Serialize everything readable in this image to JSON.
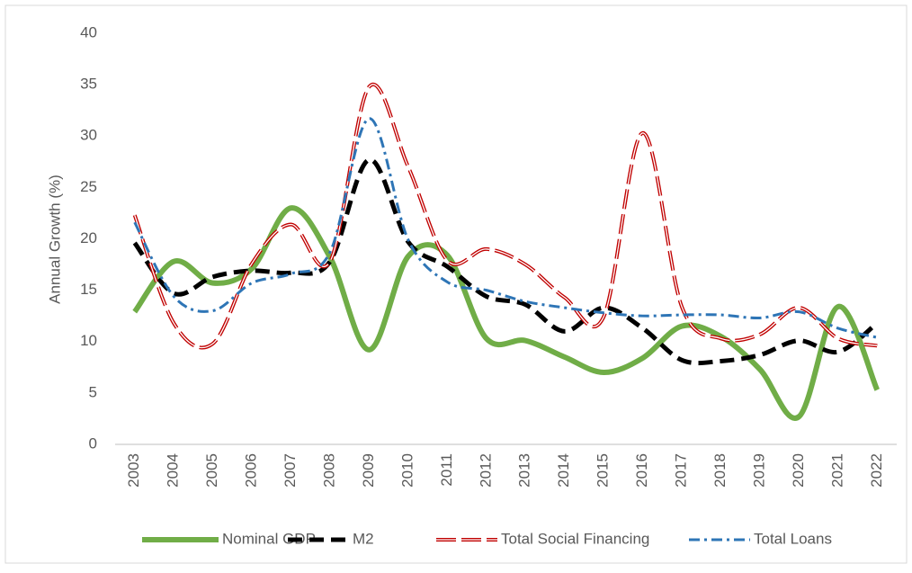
{
  "chart_data": {
    "type": "line",
    "y_label": "Annual Growth (%)",
    "categories": [
      "2003",
      "2004",
      "2005",
      "2006",
      "2007",
      "2008",
      "2009",
      "2010",
      "2011",
      "2012",
      "2013",
      "2014",
      "2015",
      "2016",
      "2017",
      "2018",
      "2019",
      "2020",
      "2021",
      "2022"
    ],
    "series": [
      {
        "name": "Nominal GDP",
        "color": "#70ad47",
        "style": "solid",
        "values": [
          12.9,
          17.8,
          15.7,
          17.1,
          23.0,
          18.2,
          9.2,
          18.3,
          18.4,
          10.3,
          10.1,
          8.5,
          7.0,
          8.4,
          11.5,
          10.5,
          7.3,
          2.7,
          13.4,
          5.3
        ]
      },
      {
        "name": "M2",
        "color": "#000000",
        "style": "dash",
        "values": [
          19.6,
          14.7,
          16.3,
          16.9,
          16.7,
          17.8,
          27.7,
          19.7,
          17.3,
          14.4,
          13.6,
          11.0,
          13.3,
          11.3,
          8.2,
          8.1,
          8.7,
          10.1,
          9.0,
          11.8
        ]
      },
      {
        "name": "Total Social Financing",
        "color": "#c00000",
        "style": "double-dash",
        "values": [
          22.3,
          11.8,
          9.8,
          17.6,
          21.4,
          17.8,
          34.8,
          27.0,
          17.9,
          19.0,
          17.5,
          14.3,
          12.4,
          30.3,
          13.4,
          10.3,
          10.7,
          13.3,
          10.3,
          9.6
        ]
      },
      {
        "name": "Total Loans",
        "color": "#2e75b6",
        "style": "dash-dot",
        "values": [
          21.6,
          14.4,
          13.0,
          15.7,
          16.6,
          18.7,
          31.7,
          19.9,
          15.8,
          15.0,
          13.9,
          13.3,
          12.8,
          12.5,
          12.6,
          12.6,
          12.3,
          12.9,
          11.3,
          10.4
        ]
      }
    ],
    "ylim": [
      0,
      40
    ],
    "yticks": [
      0,
      5,
      10,
      15,
      20,
      25,
      30,
      35,
      40
    ],
    "grid": false,
    "legend": "bottom"
  }
}
